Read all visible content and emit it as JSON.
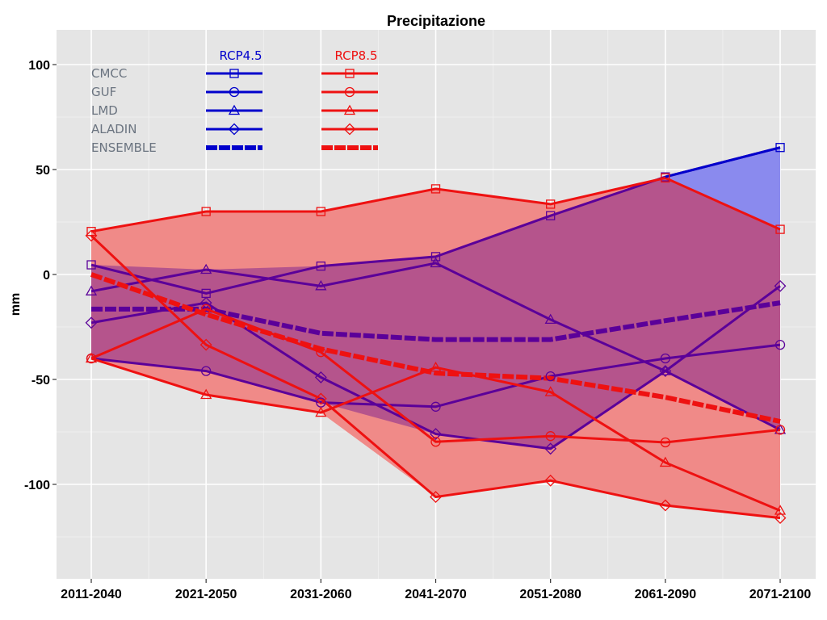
{
  "chart_data": {
    "type": "line",
    "title": "Precipitazione",
    "xlabel": "",
    "ylabel": "mm",
    "categories": [
      "2011-2040",
      "2021-2050",
      "2031-2060",
      "2041-2070",
      "2051-2080",
      "2061-2090",
      "2071-2100"
    ],
    "ylim": [
      -145,
      117
    ],
    "yticks": [
      100,
      50,
      0,
      -50,
      -100
    ],
    "ytick_labels": [
      "100",
      "50",
      "0",
      "-50",
      "-100"
    ],
    "grid": true,
    "legend": {
      "placement": "top-left",
      "scenario_headers": [
        "RCP4.5",
        "RCP8.5"
      ],
      "models": [
        "CMCC",
        "GUF",
        "LMD",
        "ALADIN",
        "ENSEMBLE"
      ]
    },
    "colors": {
      "RCP4.5": "#0000cc",
      "RCP8.5": "#ee1111",
      "RCP4.5_line_in_overlap": "#5b0099",
      "RCP4.5_band": "#8a8aee",
      "RCP8.5_band": "#f08a88",
      "overlap_band": "#b5548c",
      "panel_bg": "#e5e5e5",
      "grid": "#ffffff",
      "legend_text": "#6b7480"
    },
    "scenarios": [
      {
        "name": "RCP4.5",
        "series": [
          {
            "name": "CMCC",
            "marker": "square",
            "values": [
              4.6,
              -9,
              4,
              8.5,
              28,
              46.5,
              60.5
            ]
          },
          {
            "name": "GUF",
            "marker": "circle",
            "values": [
              -40,
              -46,
              -61,
              -63,
              -48.5,
              -40,
              -33.5
            ]
          },
          {
            "name": "LMD",
            "marker": "triangle",
            "values": [
              -8,
              2.3,
              -5.5,
              5.4,
              -21.5,
              -46,
              -74
            ]
          },
          {
            "name": "ALADIN",
            "marker": "diamond",
            "values": [
              -23,
              -13.5,
              -49,
              -76,
              -83,
              -46,
              -5.5
            ]
          },
          {
            "name": "ENSEMBLE",
            "marker": "none",
            "dashed": true,
            "values": [
              -16.5,
              -16.5,
              -28,
              -31,
              -31,
              -22,
              -13.5
            ]
          }
        ]
      },
      {
        "name": "RCP8.5",
        "series": [
          {
            "name": "CMCC",
            "marker": "square",
            "values": [
              20.5,
              30,
              30,
              40.8,
              33.5,
              46,
              21.5
            ]
          },
          {
            "name": "GUF",
            "marker": "circle",
            "values": [
              -40,
              -16.5,
              -37,
              -79.7,
              -77,
              -80,
              -74
            ]
          },
          {
            "name": "LMD",
            "marker": "triangle",
            "values": [
              -40,
              -57.3,
              -65.8,
              -44.3,
              -56,
              -89.6,
              -112.5
            ]
          },
          {
            "name": "ALADIN",
            "marker": "diamond",
            "values": [
              18.5,
              -33.5,
              -59.2,
              -106,
              -98.2,
              -110,
              -116
            ]
          },
          {
            "name": "ENSEMBLE",
            "marker": "none",
            "dashed": true,
            "values": [
              0,
              -19,
              -35.5,
              -47,
              -49.5,
              -58.5,
              -70
            ]
          }
        ]
      }
    ]
  }
}
